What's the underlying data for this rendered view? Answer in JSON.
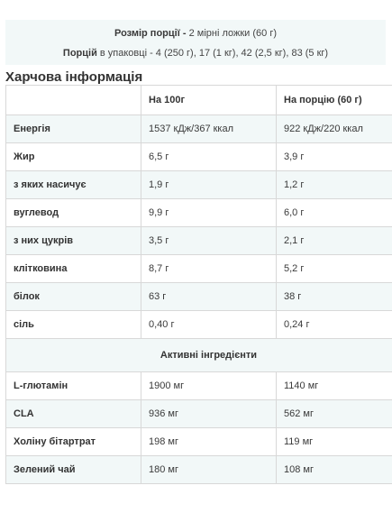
{
  "serving": {
    "size_label": "Розмір порції - ",
    "size_value": "2 мірні ложки (60 г)",
    "per_pack_label": "Порцій",
    "per_pack_value": " в упаковці - 4 (250 г), 17 (1 кг), 42 (2,5 кг), 83 (5 кг)"
  },
  "section_title": "Харчова інформація",
  "table": {
    "headers": [
      "",
      "На 100г",
      "На порцію (60 г)"
    ],
    "rows": [
      {
        "name": "Енергія",
        "per100": "1537 кДж/367 ккал",
        "perServing": "922 кДж/220 ккал"
      },
      {
        "name": "Жир",
        "per100": "6,5 г",
        "perServing": "3,9 г"
      },
      {
        "name": "з яких насичує",
        "per100": "1,9 г",
        "perServing": "1,2 г"
      },
      {
        "name": "вуглевод",
        "per100": "9,9 г",
        "perServing": "6,0 г"
      },
      {
        "name": "з них цукрів",
        "per100": "3,5 г",
        "perServing": "2,1 г"
      },
      {
        "name": "клітковина",
        "per100": "8,7 г",
        "perServing": "5,2 г"
      },
      {
        "name": "білок",
        "per100": "63 г",
        "perServing": "38 г"
      },
      {
        "name": "сіль",
        "per100": "0,40 г",
        "perServing": "0,24 г"
      }
    ],
    "active_section": "Активні інгредієнти",
    "active_rows": [
      {
        "name": "L-глютамін",
        "per100": "1900 мг",
        "perServing": "1140 мг"
      },
      {
        "name": "CLA",
        "per100": "936 мг",
        "perServing": "562 мг"
      },
      {
        "name": "Холіну бітартрат",
        "per100": "198 мг",
        "perServing": "119 мг"
      },
      {
        "name": "Зелений чай",
        "per100": "180 мг",
        "perServing": "108 мг"
      }
    ]
  }
}
